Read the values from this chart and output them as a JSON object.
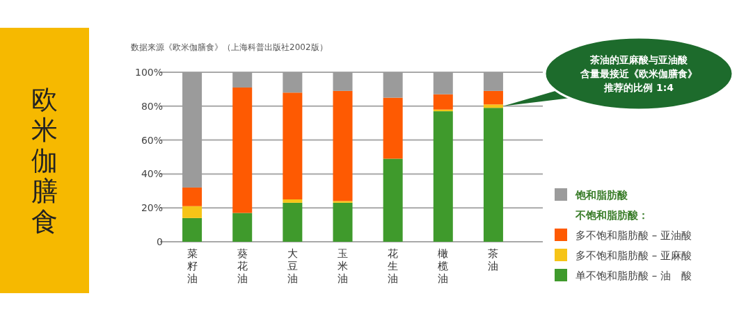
{
  "chart_data": {
    "type": "bar",
    "stacked": true,
    "title": "欧米伽膳食",
    "categories": [
      "菜籽油",
      "葵花油",
      "大豆油",
      "玉米油",
      "花生油",
      "橄榄油",
      "茶油"
    ],
    "series": [
      {
        "name": "单不饱和脂肪酸 – 油　酸",
        "color": "#3f9a2c",
        "values": [
          14,
          17,
          23,
          23,
          49,
          77,
          79
        ]
      },
      {
        "name": "多不饱和脂肪酸 – 亚麻酸",
        "color": "#f6c417",
        "values": [
          7,
          0,
          2,
          1,
          0,
          1,
          2
        ]
      },
      {
        "name": "多不饱和脂肪酸 – 亚油酸",
        "color": "#fe5a02",
        "values": [
          11,
          74,
          63,
          65,
          36,
          9,
          8
        ]
      },
      {
        "name": "饱和脂肪酸",
        "color": "#9b9b9b",
        "values": [
          68,
          9,
          12,
          11,
          15,
          13,
          11
        ]
      }
    ],
    "ylim": [
      0,
      100
    ],
    "yticks": [
      0,
      {
        "value": 20,
        "label": "20%"
      },
      {
        "value": 40,
        "label": "40%"
      },
      {
        "value": 60,
        "label": "60%"
      },
      {
        "value": 80,
        "label": "80%"
      },
      {
        "value": 100,
        "label": "100%"
      }
    ],
    "grid": "y",
    "legend": "right",
    "annotations": [
      "数据来源《欧米伽膳食》（上海科普出版社2002版）",
      "不饱和脂肪酸：",
      "茶油的亚麻酸与亚油酸含量最接近《欧米伽膳食》推荐的比例 1:4"
    ]
  }
}
